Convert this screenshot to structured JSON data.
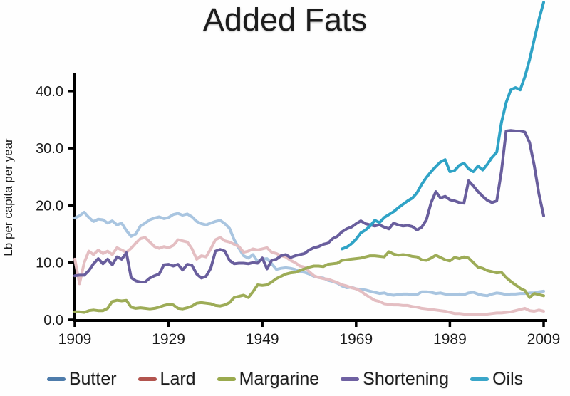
{
  "page": {
    "title": "Added Fats"
  },
  "chart_data": {
    "type": "line",
    "title": "Added Fats",
    "xlabel": "",
    "ylabel": "Lb per capita per year",
    "xlim": [
      1909,
      2009
    ],
    "ylim": [
      0,
      43.5
    ],
    "grid": false,
    "legend_position": "bottom",
    "x_ticks": [
      1909,
      1929,
      1949,
      1969,
      1989,
      2009
    ],
    "y_ticks": [
      0,
      10,
      20,
      30,
      40
    ],
    "y_tick_labels": [
      "0.0",
      "10.0",
      "20.0",
      "30.0",
      "40.0"
    ],
    "axis_color": "#000000",
    "text_color": "#1a1a1a",
    "series": [
      {
        "name": "Butter",
        "line_color": "#a9c5e0",
        "legend_color": "#4e7cab",
        "start_year": 1909,
        "values": [
          17.8,
          18.2,
          18.8,
          17.9,
          17.2,
          17.6,
          17.5,
          16.9,
          17.3,
          16.6,
          16.9,
          15.6,
          14.6,
          15.0,
          16.4,
          16.9,
          17.5,
          17.8,
          18.0,
          17.7,
          17.9,
          18.4,
          18.6,
          18.3,
          18.5,
          18.0,
          17.2,
          16.8,
          16.6,
          16.9,
          17.2,
          17.4,
          16.8,
          16.0,
          14.0,
          12.5,
          11.2,
          10.8,
          11.4,
          10.2,
          10.6,
          10.7,
          9.8,
          8.8,
          9.0,
          9.1,
          9.0,
          8.8,
          8.4,
          8.3,
          8.0,
          7.6,
          7.4,
          7.3,
          6.9,
          6.7,
          6.4,
          5.9,
          5.6,
          5.7,
          5.4,
          5.3,
          5.2,
          5.0,
          4.8,
          4.6,
          4.7,
          4.4,
          4.3,
          4.4,
          4.5,
          4.5,
          4.4,
          4.4,
          4.9,
          4.9,
          4.8,
          4.6,
          4.7,
          4.5,
          4.4,
          4.4,
          4.5,
          4.4,
          4.7,
          4.8,
          4.5,
          4.3,
          4.2,
          4.5,
          4.7,
          4.6,
          4.4,
          4.5,
          4.5,
          4.6,
          4.6,
          4.7,
          4.7,
          4.9,
          5.0
        ]
      },
      {
        "name": "Lard",
        "line_color": "#e4bec2",
        "legend_color": "#b2544e",
        "start_year": 1909,
        "values": [
          10.6,
          6.3,
          10.0,
          12.0,
          11.4,
          12.2,
          11.6,
          12.0,
          11.4,
          12.6,
          12.2,
          11.8,
          12.5,
          13.4,
          14.2,
          14.4,
          13.6,
          12.8,
          12.5,
          12.8,
          12.6,
          13.0,
          14.0,
          13.8,
          13.6,
          12.4,
          10.6,
          11.2,
          11.0,
          12.4,
          14.0,
          14.4,
          13.8,
          13.6,
          13.2,
          12.8,
          11.8,
          12.0,
          12.4,
          12.2,
          12.4,
          12.6,
          11.8,
          11.6,
          11.2,
          11.0,
          10.4,
          10.0,
          9.4,
          9.2,
          8.4,
          7.7,
          7.4,
          7.2,
          7.1,
          6.8,
          6.5,
          6.1,
          5.9,
          5.6,
          5.4,
          5.0,
          4.4,
          3.9,
          3.4,
          3.2,
          2.8,
          2.7,
          2.6,
          2.6,
          2.5,
          2.5,
          2.3,
          2.2,
          2.0,
          1.9,
          1.8,
          1.7,
          1.6,
          1.5,
          1.3,
          1.1,
          1.1,
          1.0,
          1.0,
          0.9,
          0.9,
          0.9,
          1.0,
          1.1,
          1.2,
          1.2,
          1.3,
          1.4,
          1.6,
          1.8,
          2.0,
          1.6,
          1.5,
          1.7,
          1.5
        ]
      },
      {
        "name": "Margarine",
        "line_color": "#9dac57",
        "legend_color": "#9aaa4e",
        "start_year": 1909,
        "values": [
          1.4,
          1.4,
          1.3,
          1.6,
          1.7,
          1.6,
          1.6,
          2.0,
          3.2,
          3.4,
          3.3,
          3.4,
          2.2,
          2.0,
          2.1,
          2.0,
          1.9,
          2.0,
          2.2,
          2.5,
          2.7,
          2.6,
          2.0,
          1.9,
          2.1,
          2.4,
          2.9,
          3.0,
          2.9,
          2.8,
          2.5,
          2.4,
          2.6,
          3.0,
          3.9,
          4.1,
          4.3,
          3.9,
          4.9,
          6.1,
          6.0,
          6.1,
          6.6,
          7.2,
          7.6,
          8.0,
          8.2,
          8.3,
          8.6,
          8.9,
          9.2,
          9.4,
          9.4,
          9.3,
          9.7,
          9.8,
          9.9,
          10.4,
          10.5,
          10.6,
          10.7,
          10.8,
          11.0,
          11.2,
          11.2,
          11.1,
          11.0,
          11.9,
          11.5,
          11.3,
          11.4,
          11.3,
          11.1,
          11.0,
          10.5,
          10.4,
          10.8,
          11.3,
          10.9,
          10.5,
          10.3,
          10.9,
          10.7,
          11.0,
          10.8,
          10.0,
          9.2,
          9.0,
          8.6,
          8.4,
          8.2,
          8.3,
          7.4,
          6.7,
          6.1,
          5.5,
          5.1,
          3.9,
          4.6,
          4.4,
          4.2
        ]
      },
      {
        "name": "Shortening",
        "line_color": "#695e9d",
        "legend_color": "#6f61a2",
        "start_year": 1909,
        "values": [
          7.7,
          7.8,
          7.8,
          8.6,
          9.8,
          10.7,
          9.8,
          10.6,
          9.6,
          11.0,
          10.6,
          11.7,
          7.4,
          6.8,
          6.6,
          6.6,
          7.3,
          7.7,
          8.0,
          9.6,
          9.7,
          9.4,
          9.7,
          8.7,
          9.7,
          9.5,
          8.0,
          7.3,
          7.6,
          9.0,
          12.0,
          12.3,
          12.0,
          10.4,
          9.8,
          9.9,
          9.9,
          9.8,
          10.0,
          9.9,
          10.8,
          8.9,
          10.4,
          10.6,
          11.2,
          11.4,
          10.9,
          11.2,
          11.4,
          11.6,
          12.2,
          12.6,
          12.8,
          13.2,
          13.4,
          14.2,
          14.6,
          15.4,
          15.9,
          16.2,
          16.8,
          17.3,
          16.8,
          16.6,
          16.4,
          16.6,
          16.2,
          15.9,
          16.9,
          16.6,
          16.4,
          16.5,
          16.3,
          15.7,
          16.2,
          17.5,
          20.5,
          22.4,
          21.3,
          21.6,
          21.0,
          20.8,
          20.5,
          20.4,
          24.3,
          23.4,
          22.4,
          21.6,
          20.9,
          20.5,
          20.8,
          26.0,
          33.0,
          33.1,
          33.0,
          33.0,
          32.8,
          31.0,
          27.0,
          22.0,
          18.2
        ]
      },
      {
        "name": "Oils",
        "line_color": "#2fa3c6",
        "legend_color": "#3aa6c9",
        "start_year": 1966,
        "values": [
          12.4,
          12.7,
          13.3,
          14.1,
          15.2,
          15.7,
          16.4,
          17.4,
          17.0,
          17.9,
          18.4,
          18.9,
          19.6,
          20.2,
          20.8,
          21.3,
          22.2,
          23.7,
          24.9,
          25.9,
          26.8,
          27.6,
          28.0,
          25.9,
          26.1,
          27.0,
          27.4,
          26.4,
          25.9,
          26.9,
          26.2,
          27.2,
          28.4,
          29.3,
          34.5,
          38.0,
          40.2,
          40.6,
          40.2,
          42.5,
          45.5,
          49.0,
          52.5,
          55.5
        ]
      }
    ]
  }
}
